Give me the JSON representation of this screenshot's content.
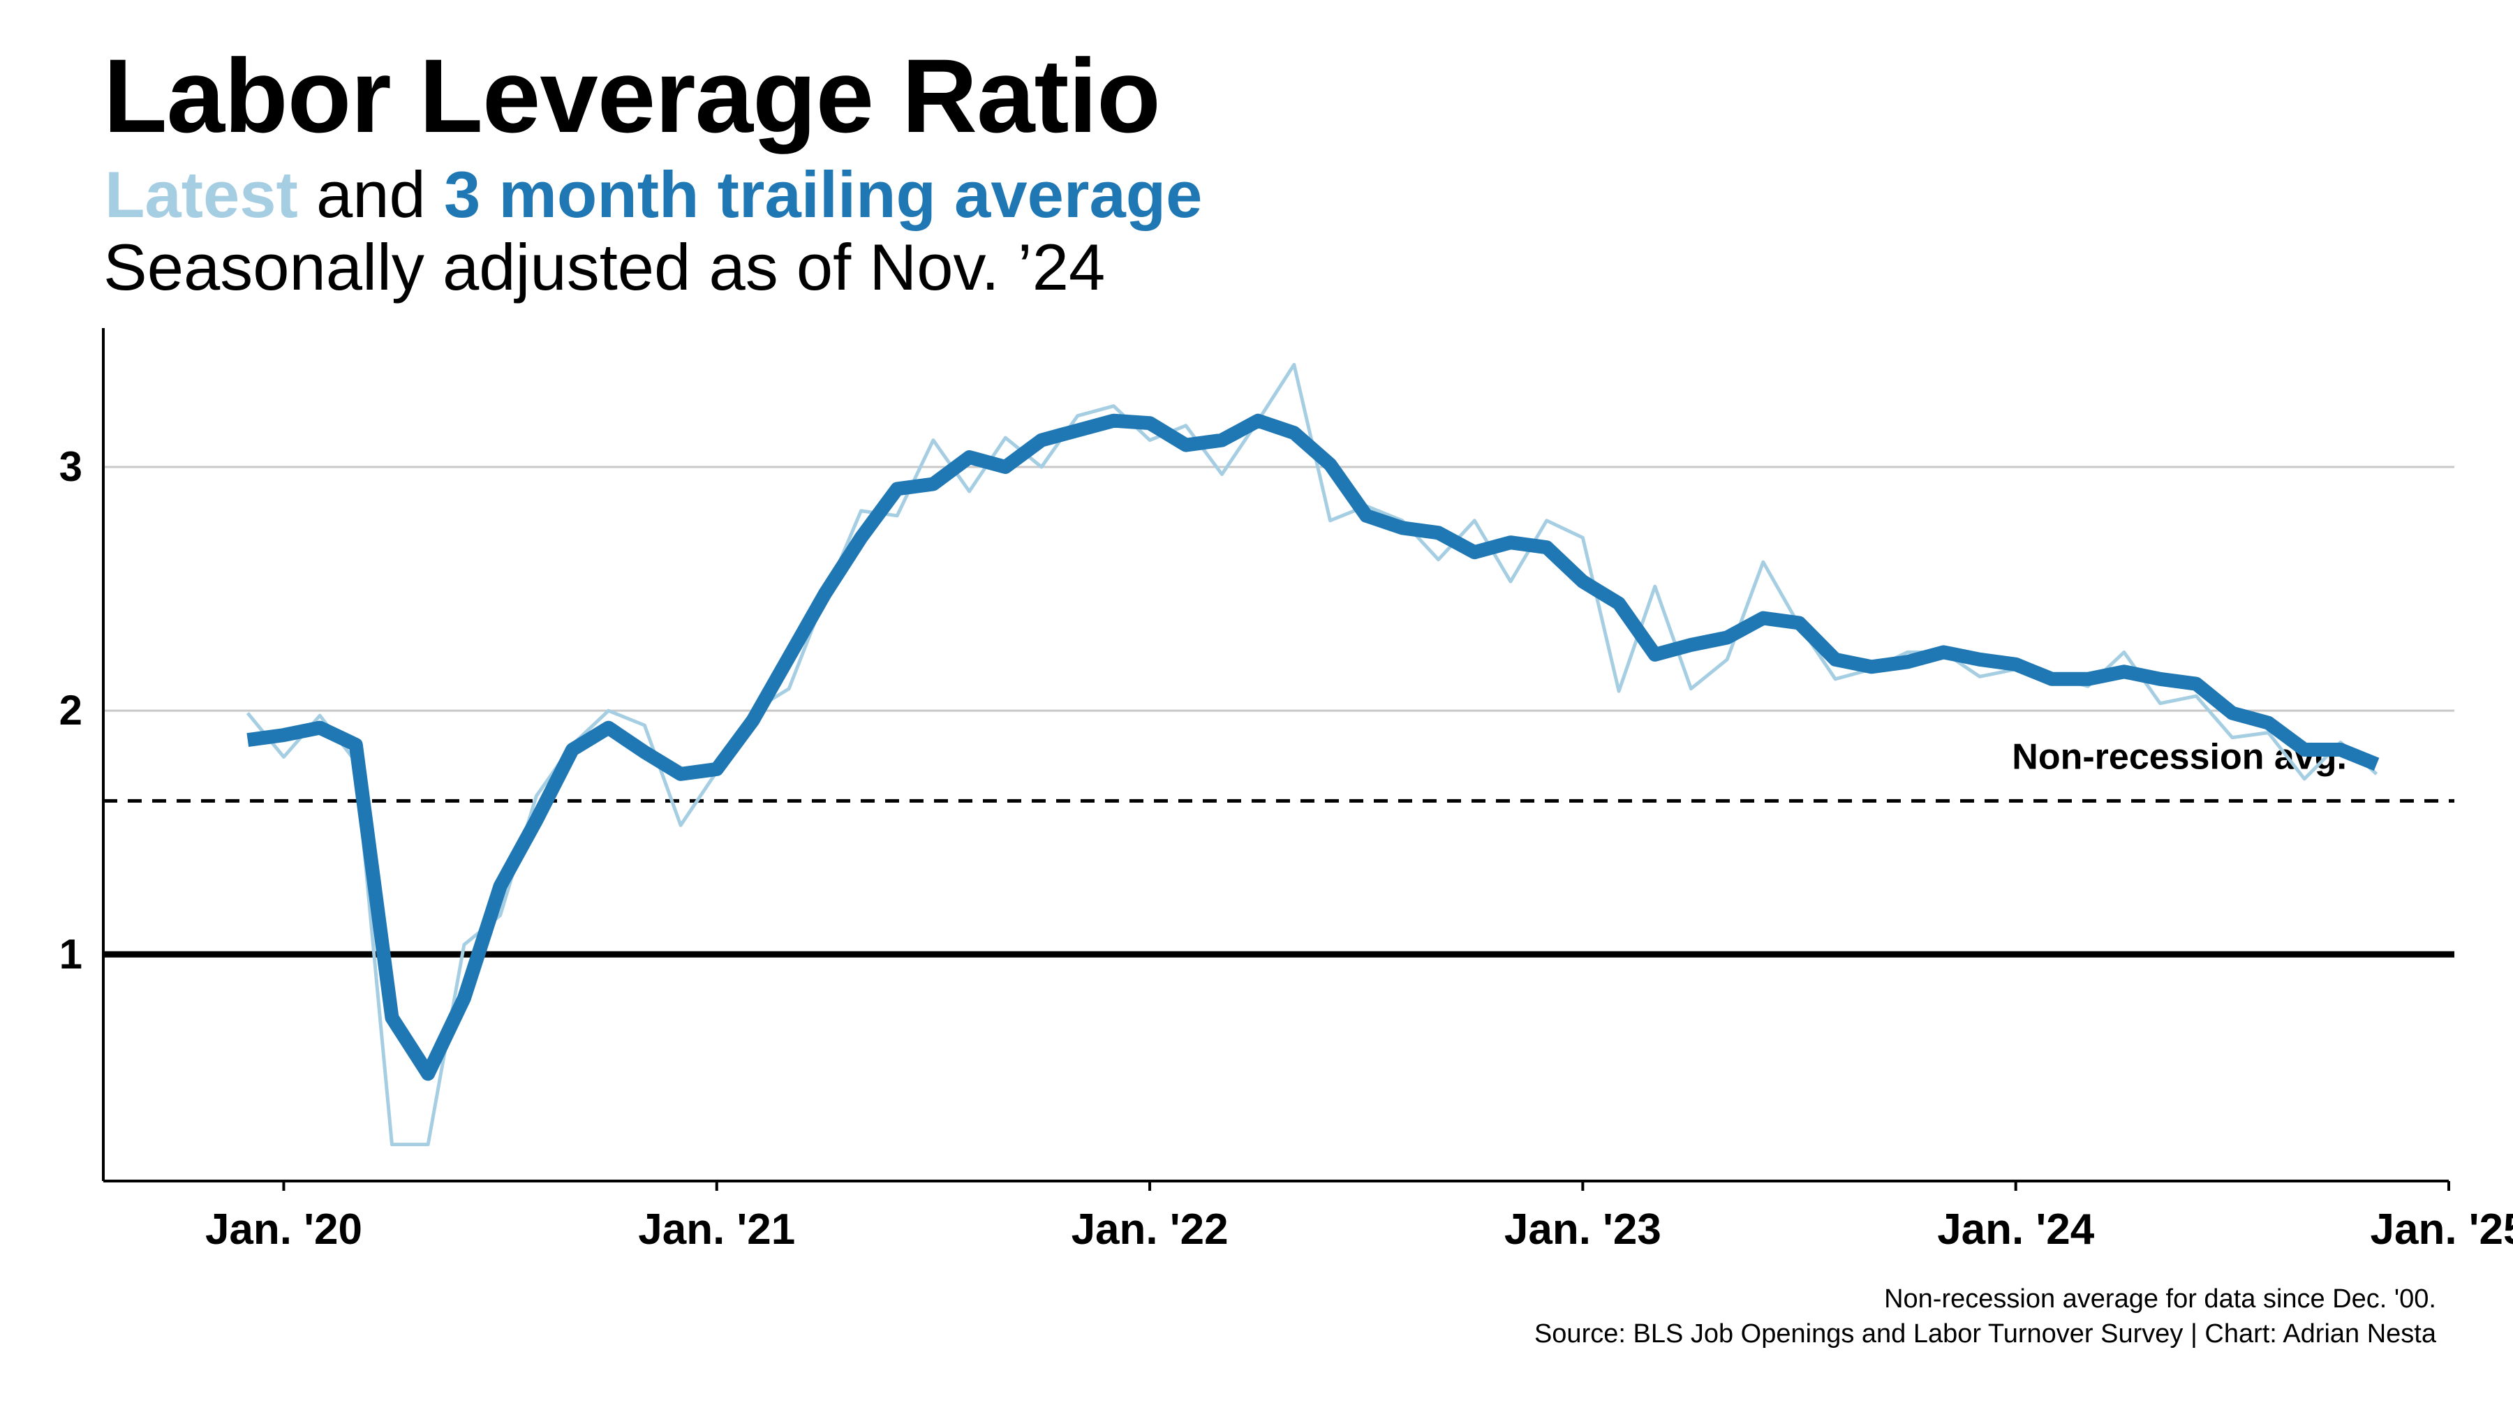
{
  "title": "Labor Leverage Ratio",
  "subtitle": {
    "latest_label": "Latest",
    "connector": " and ",
    "avg_label": "3 month trailing average"
  },
  "subtitle2": "Seasonally adjusted as of Nov. ’24",
  "footer": {
    "line1": "Non-recession average for data since Dec. '00.",
    "line2": "Source: BLS Job Openings and Labor Turnover Survey | Chart: Adrian Nesta"
  },
  "colors": {
    "latest": "#a6cee3",
    "average": "#1f78b4",
    "reference": "#000000",
    "grid": "#c8c8c8"
  },
  "chart_data": {
    "type": "line",
    "x_unit": "month",
    "x": [
      "2019-12",
      "2020-01",
      "2020-02",
      "2020-03",
      "2020-04",
      "2020-05",
      "2020-06",
      "2020-07",
      "2020-08",
      "2020-09",
      "2020-10",
      "2020-11",
      "2020-12",
      "2021-01",
      "2021-02",
      "2021-03",
      "2021-04",
      "2021-05",
      "2021-06",
      "2021-07",
      "2021-08",
      "2021-09",
      "2021-10",
      "2021-11",
      "2021-12",
      "2022-01",
      "2022-02",
      "2022-03",
      "2022-04",
      "2022-05",
      "2022-06",
      "2022-07",
      "2022-08",
      "2022-09",
      "2022-10",
      "2022-11",
      "2022-12",
      "2023-01",
      "2023-02",
      "2023-03",
      "2023-04",
      "2023-05",
      "2023-06",
      "2023-07",
      "2023-08",
      "2023-09",
      "2023-10",
      "2023-11",
      "2023-12",
      "2024-01",
      "2024-02",
      "2024-03",
      "2024-04",
      "2024-05",
      "2024-06",
      "2024-07",
      "2024-08",
      "2024-09",
      "2024-10",
      "2024-11"
    ],
    "series": [
      {
        "name": "Latest",
        "values": [
          1.99,
          1.81,
          1.98,
          1.79,
          0.22,
          0.22,
          1.04,
          1.16,
          1.65,
          1.86,
          2.0,
          1.94,
          1.53,
          1.75,
          2.0,
          2.09,
          2.47,
          2.82,
          2.8,
          3.11,
          2.9,
          3.12,
          3.0,
          3.21,
          3.25,
          3.11,
          3.17,
          2.97,
          3.19,
          3.42,
          2.78,
          2.84,
          2.78,
          2.62,
          2.78,
          2.53,
          2.78,
          2.71,
          2.08,
          2.51,
          2.09,
          2.21,
          2.61,
          2.35,
          2.13,
          2.17,
          2.24,
          2.24,
          2.14,
          2.17,
          2.14,
          2.1,
          2.24,
          2.03,
          2.06,
          1.89,
          1.91,
          1.72,
          1.87,
          1.74
        ]
      },
      {
        "name": "3 month trailing average",
        "values": [
          1.88,
          1.9,
          1.93,
          1.86,
          0.74,
          0.51,
          0.82,
          1.28,
          1.55,
          1.84,
          1.93,
          1.83,
          1.74,
          1.76,
          1.96,
          2.22,
          2.48,
          2.71,
          2.91,
          2.93,
          3.04,
          3.0,
          3.11,
          3.15,
          3.19,
          3.18,
          3.09,
          3.11,
          3.19,
          3.14,
          3.01,
          2.8,
          2.75,
          2.73,
          2.65,
          2.69,
          2.67,
          2.53,
          2.44,
          2.23,
          2.27,
          2.3,
          2.38,
          2.36,
          2.21,
          2.18,
          2.2,
          2.24,
          2.21,
          2.19,
          2.13,
          2.13,
          2.16,
          2.13,
          2.11,
          1.99,
          1.95,
          1.84,
          1.84,
          1.78
        ]
      }
    ],
    "x_ticks": [
      {
        "value": "2020-01",
        "label": "Jan. '20"
      },
      {
        "value": "2021-01",
        "label": "Jan. '21"
      },
      {
        "value": "2022-01",
        "label": "Jan. '22"
      },
      {
        "value": "2023-01",
        "label": "Jan. '23"
      },
      {
        "value": "2024-01",
        "label": "Jan. '24"
      },
      {
        "value": "2025-01",
        "label": "Jan. '25"
      }
    ],
    "y_ticks": [
      {
        "value": 1,
        "label": "1"
      },
      {
        "value": 2,
        "label": "2"
      },
      {
        "value": 3,
        "label": "3"
      }
    ],
    "ylim": [
      0.07,
      3.57
    ],
    "xlim": [
      "2019-08",
      "2025-01"
    ],
    "grid": "horizontal",
    "reference_lines": [
      {
        "value": 1.0,
        "style": "solid"
      },
      {
        "value": 1.63,
        "style": "dashed",
        "label": "Non-recession avg."
      }
    ]
  }
}
